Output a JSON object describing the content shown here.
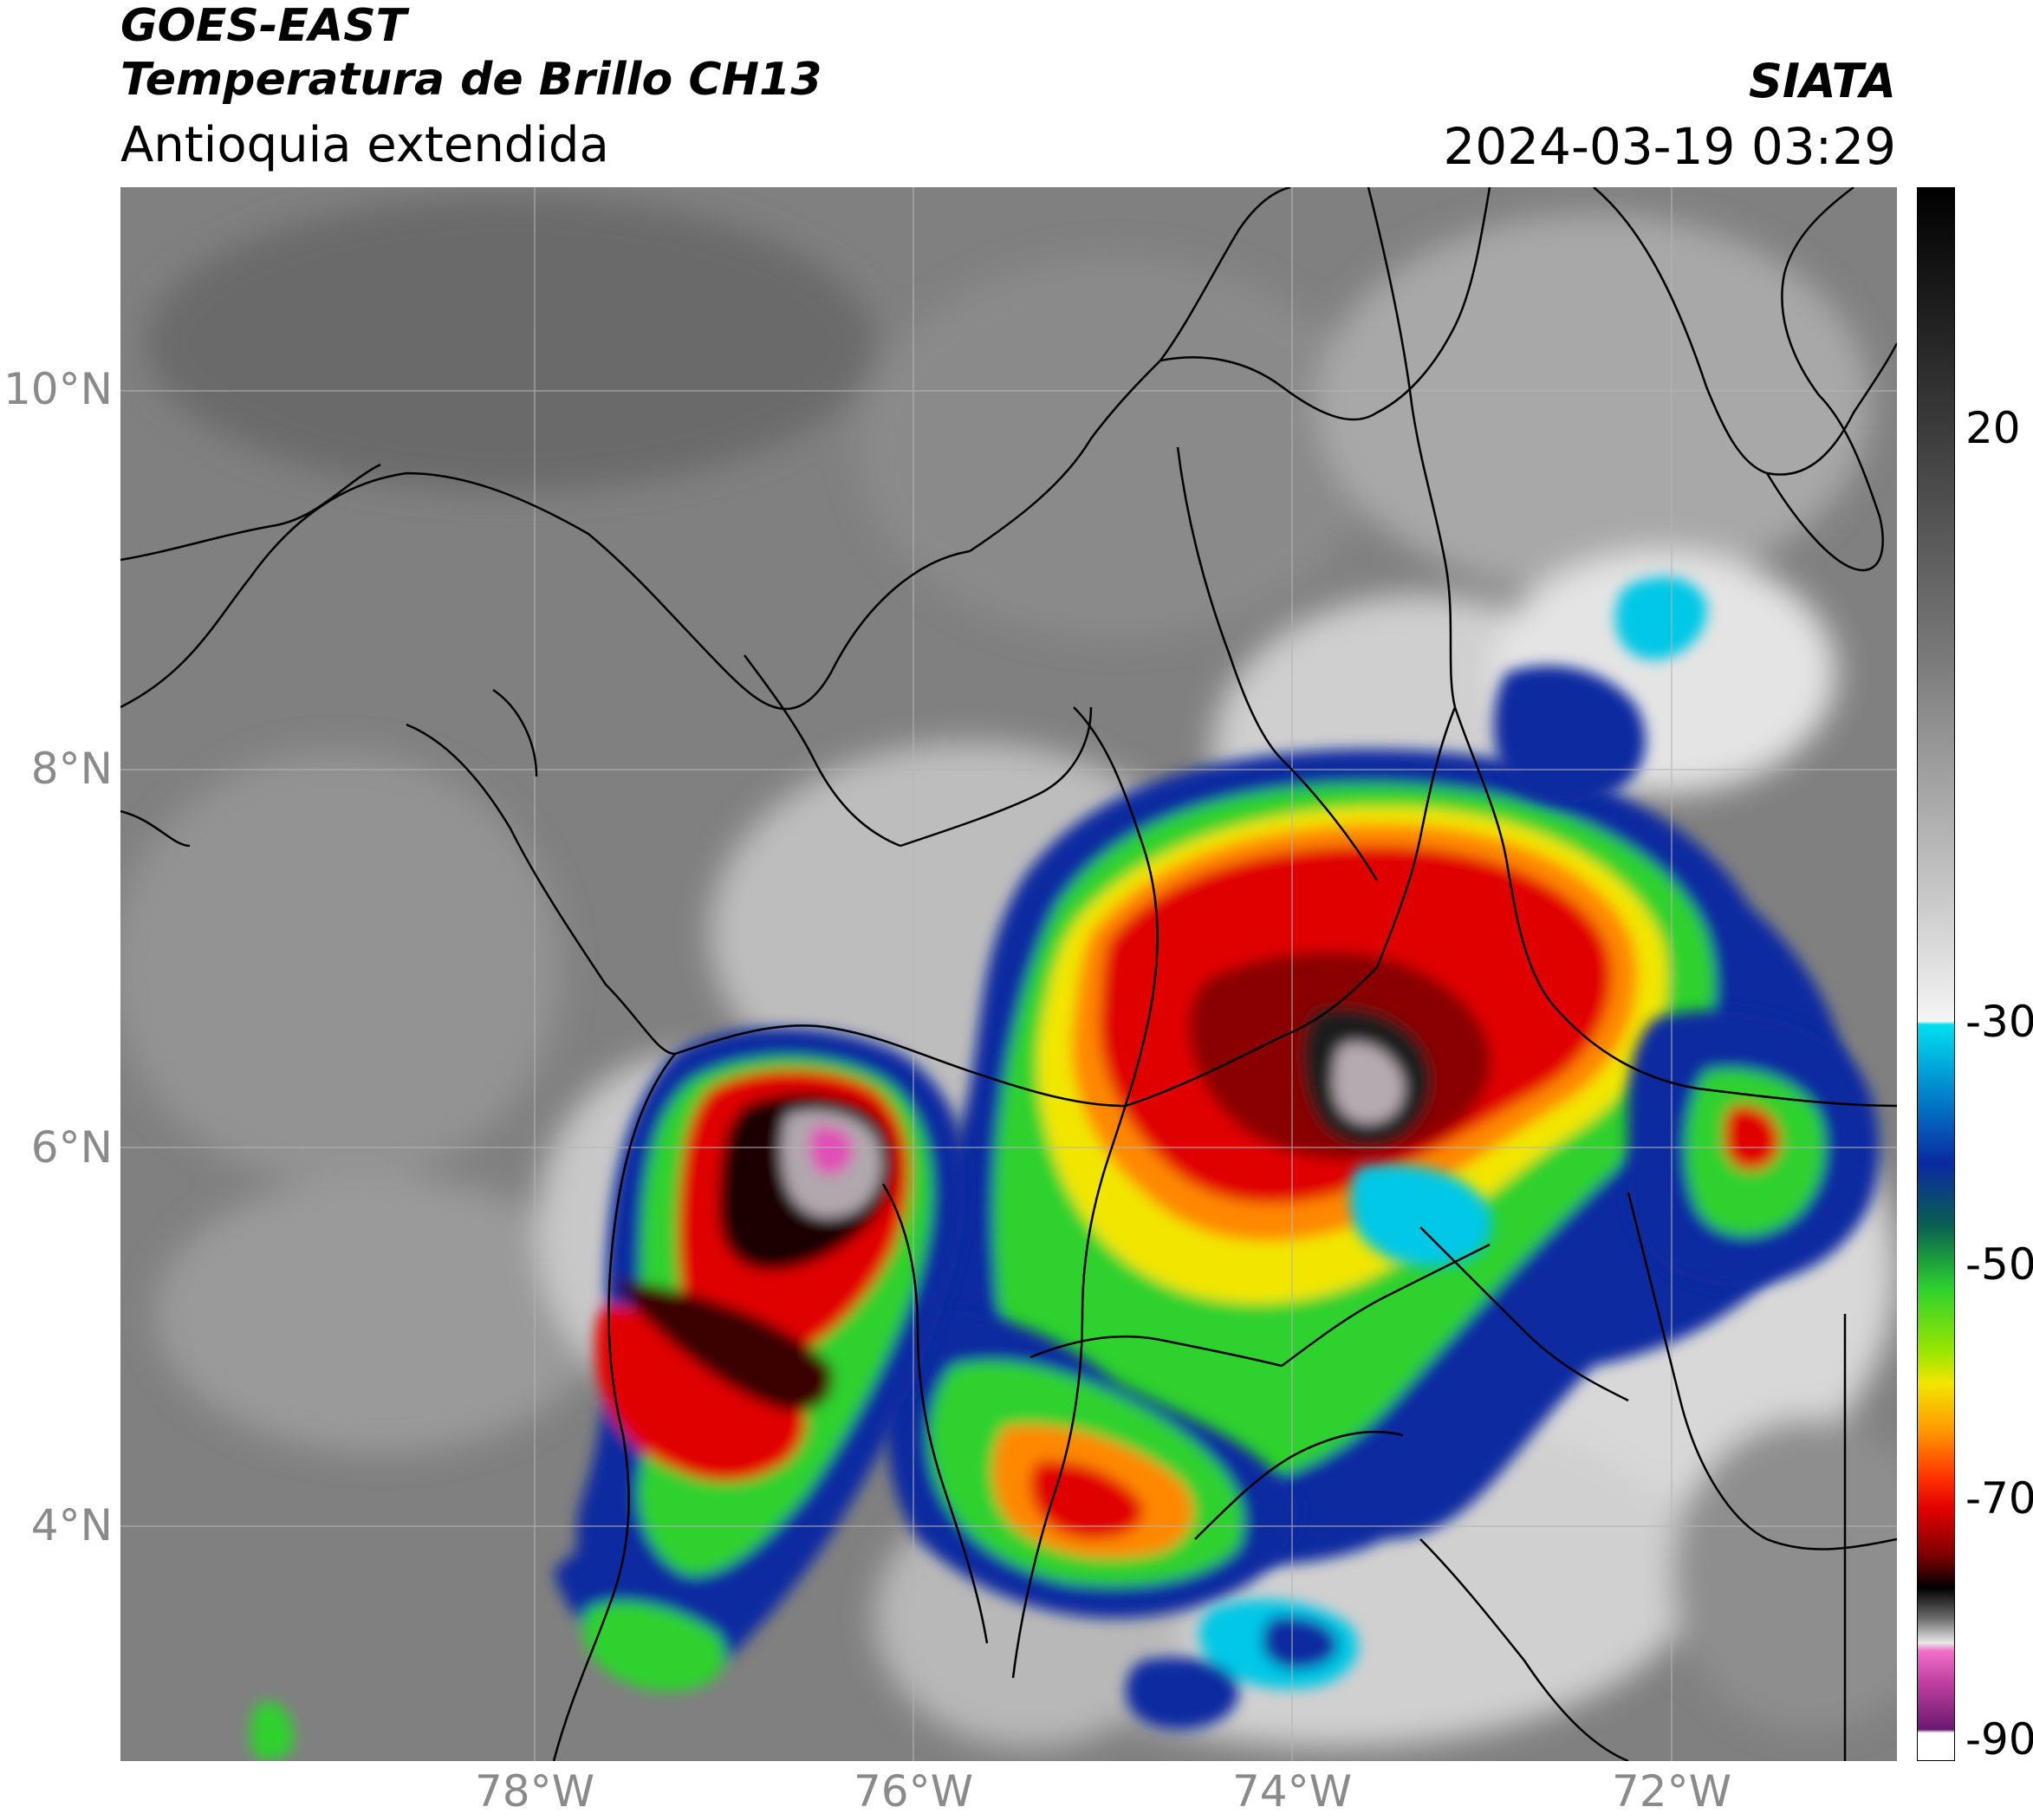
{
  "header": {
    "line1": "GOES-EAST",
    "line2": "Temperatura de Brillo CH13",
    "line3": "Antioquia extendida",
    "org": "SIATA",
    "timestamp": "2024-03-19 03:29"
  },
  "map": {
    "lat_labels": [
      "10°N",
      "8°N",
      "6°N",
      "4°N"
    ],
    "lon_labels": [
      "78°W",
      "76°W",
      "74°W",
      "72°W"
    ],
    "base_gray": "#7d7d7d"
  },
  "colorbar": {
    "ticks": [
      "20",
      "-30",
      "-50",
      "-70",
      "-90"
    ],
    "colors": {
      "cyan": "#00c8e6",
      "blue": "#0a2aa0",
      "green": "#2ed12e",
      "yellow": "#f2e600",
      "orange": "#ff8800",
      "red": "#e10000",
      "darkred": "#5a0000",
      "black": "#000000",
      "magenta": "#e04fb5",
      "purple": "#6a1870"
    }
  }
}
